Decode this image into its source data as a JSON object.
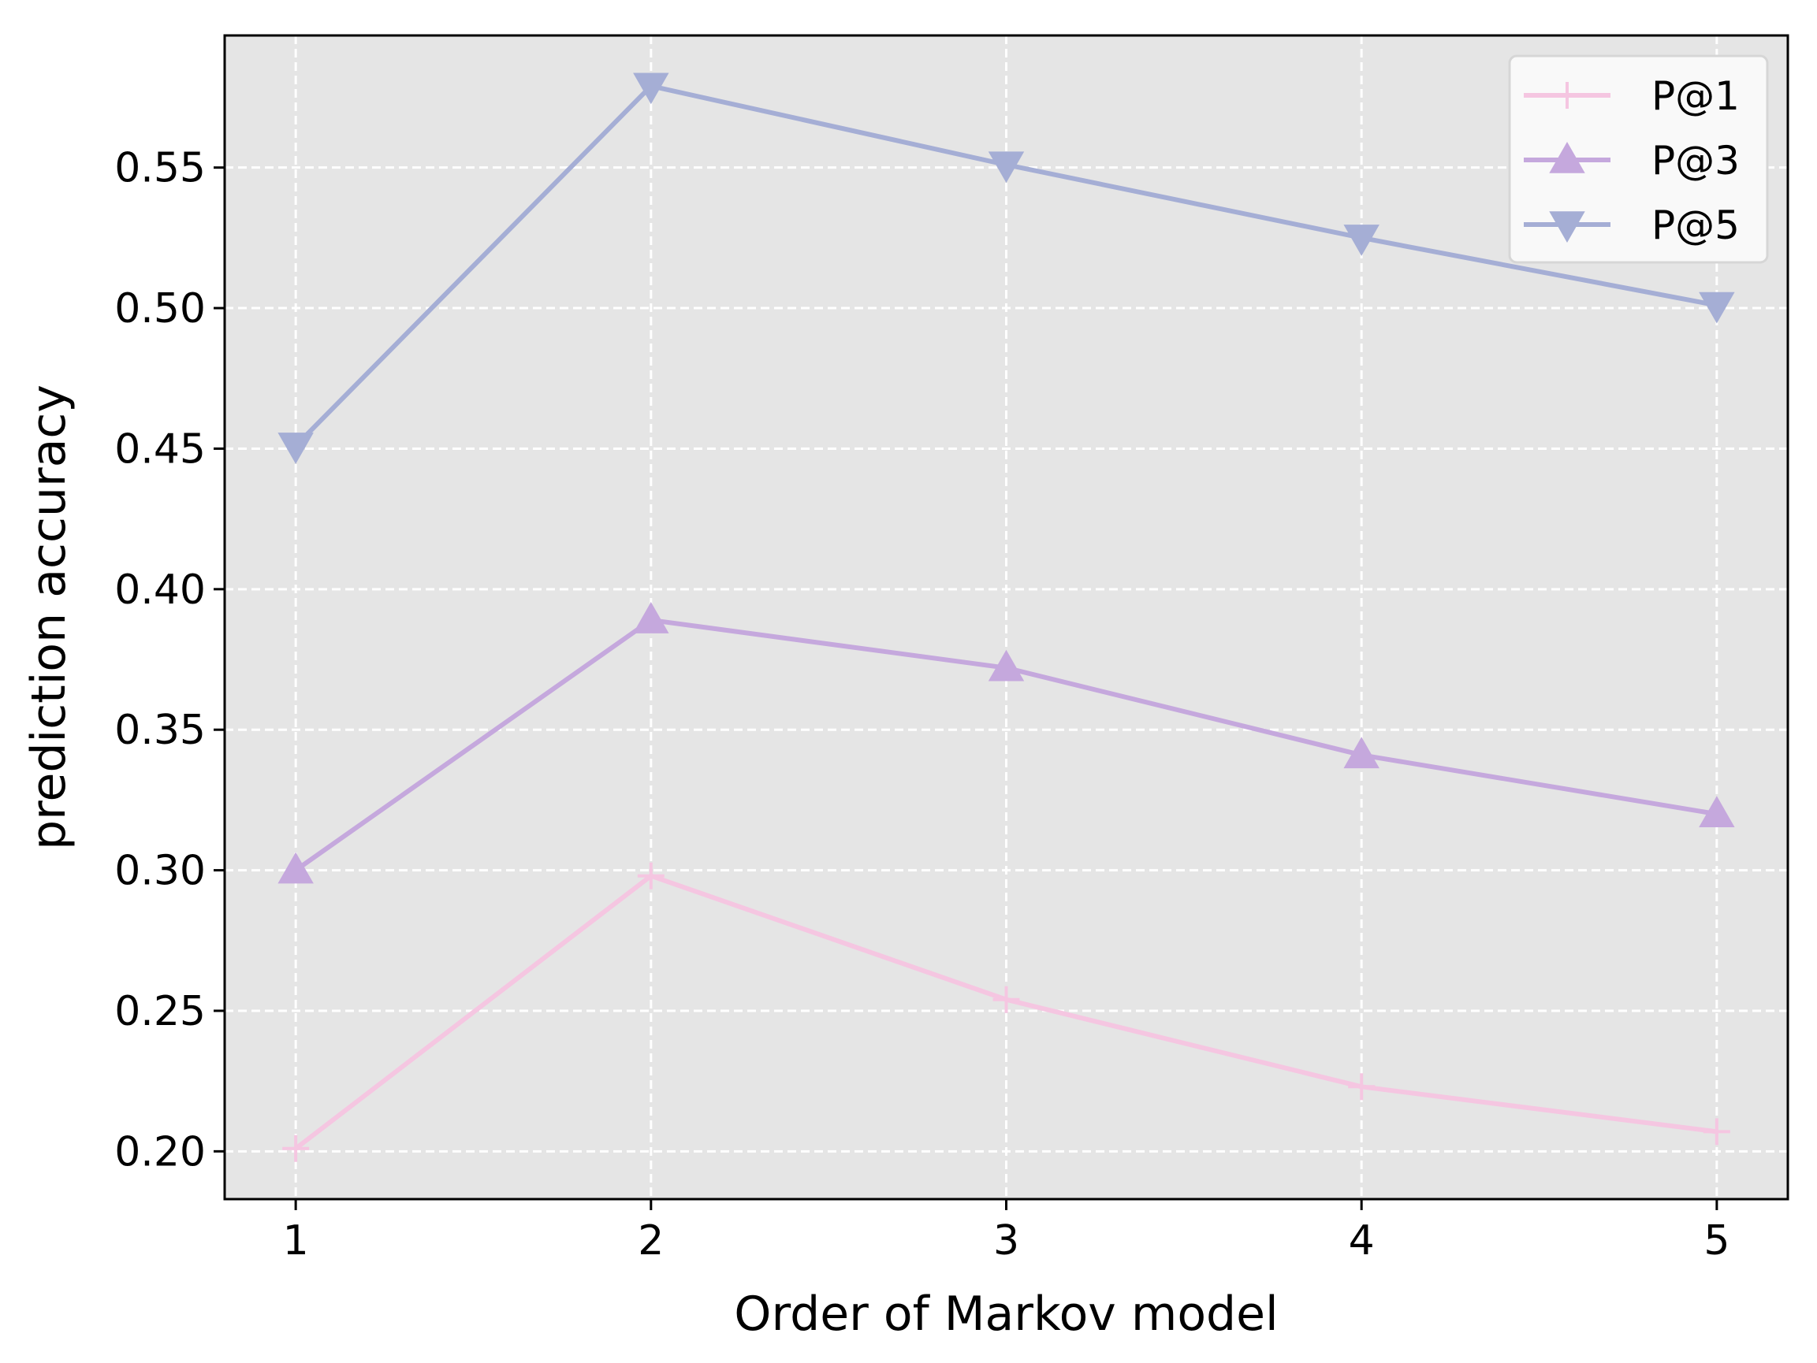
{
  "chart_data": {
    "type": "line",
    "title": "",
    "xlabel": "Order of Markov model",
    "ylabel": "prediction accuracy",
    "x": [
      1,
      2,
      3,
      4,
      5
    ],
    "x_ticks": [
      "1",
      "2",
      "3",
      "4",
      "5"
    ],
    "y_ticks": [
      "0.20",
      "0.25",
      "0.30",
      "0.35",
      "0.40",
      "0.45",
      "0.50",
      "0.55"
    ],
    "xlim": [
      0.8,
      5.2
    ],
    "ylim": [
      0.183,
      0.597
    ],
    "grid": true,
    "legend_position": "top-right",
    "plot_background": "#e5e5e5",
    "series": [
      {
        "name": "P@1",
        "values": [
          0.201,
          0.298,
          0.254,
          0.223,
          0.207
        ],
        "color": "#f5c6e1",
        "marker": "plus"
      },
      {
        "name": "P@3",
        "values": [
          0.3,
          0.389,
          0.372,
          0.341,
          0.32
        ],
        "color": "#c5a8dd",
        "marker": "triangle-up"
      },
      {
        "name": "P@5",
        "values": [
          0.451,
          0.579,
          0.551,
          0.525,
          0.501
        ],
        "color": "#a5aed5",
        "marker": "triangle-down"
      }
    ]
  }
}
